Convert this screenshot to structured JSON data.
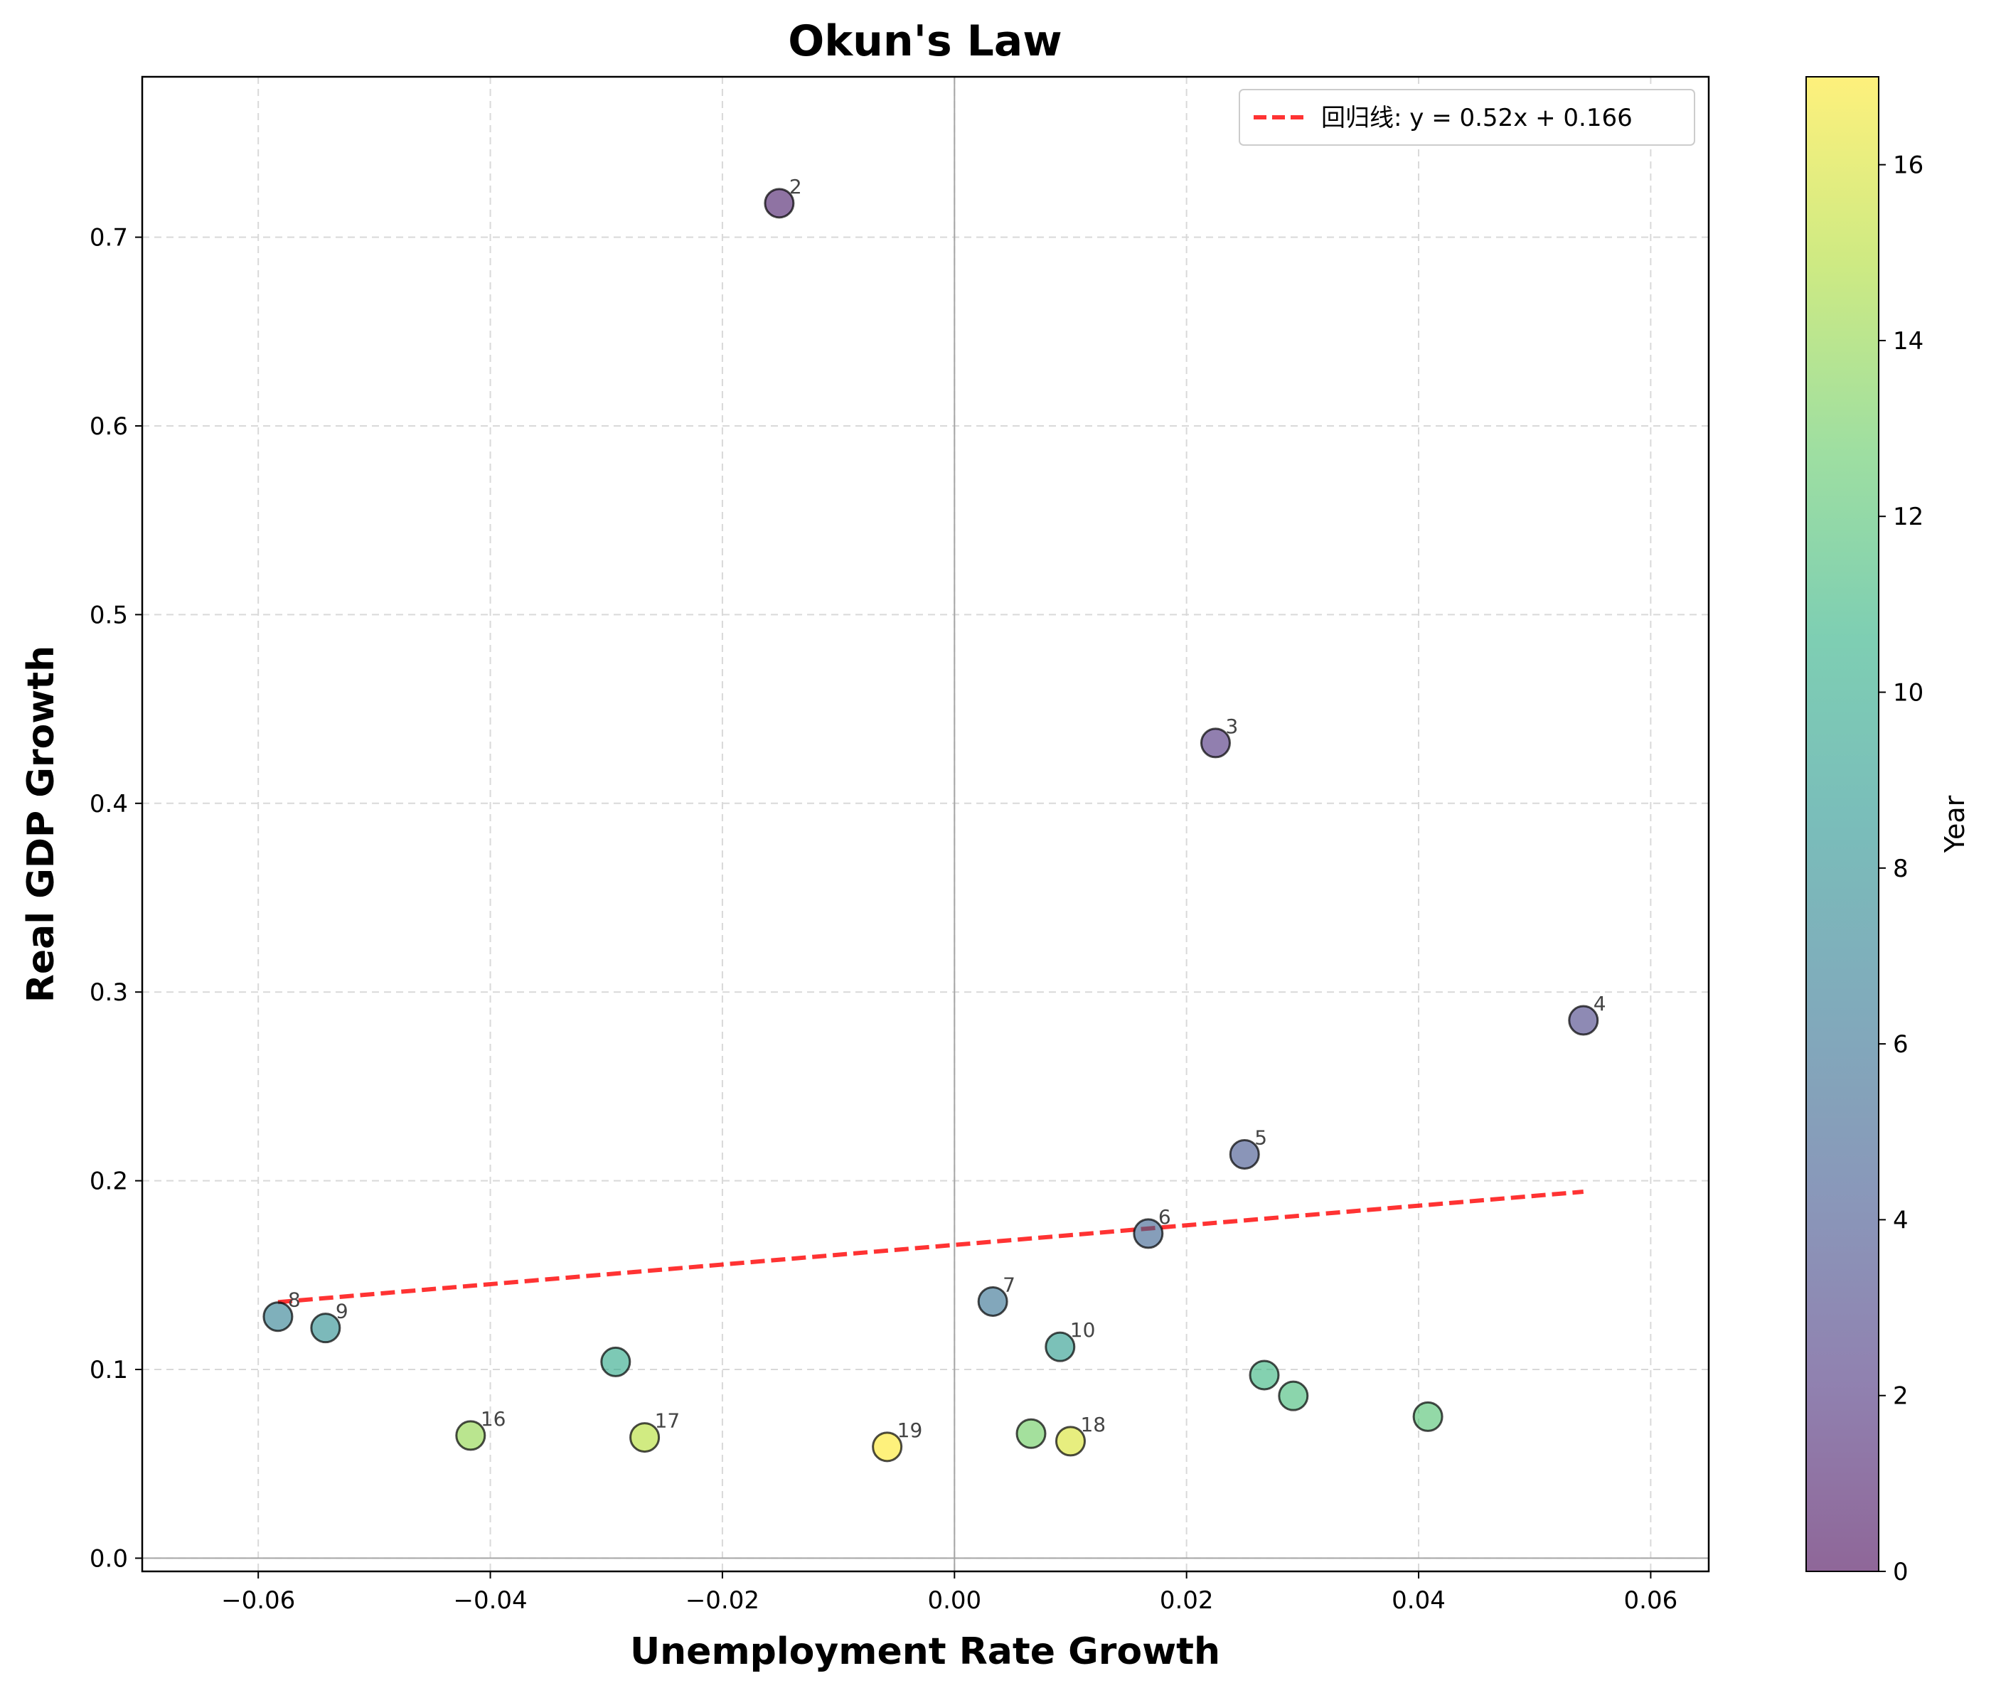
{
  "chart_data": {
    "type": "scatter",
    "title": "Okun's Law",
    "xlabel": "Unemployment Rate Growth",
    "ylabel": "Real GDP Growth",
    "xlim": [
      -0.07,
      0.065
    ],
    "ylim": [
      -0.007,
      0.785
    ],
    "xticks": [
      -0.06,
      -0.04,
      -0.02,
      0.0,
      0.02,
      0.04,
      0.06
    ],
    "xtick_labels": [
      "−0.06",
      "−0.04",
      "−0.02",
      "0.00",
      "0.02",
      "0.04",
      "0.06"
    ],
    "yticks": [
      0.0,
      0.1,
      0.2,
      0.3,
      0.4,
      0.5,
      0.6,
      0.7
    ],
    "ytick_labels": [
      "0.0",
      "0.1",
      "0.2",
      "0.3",
      "0.4",
      "0.5",
      "0.6",
      "0.7"
    ],
    "grid": true,
    "colormap": "viridis",
    "colorbar": {
      "label": "Year",
      "range": [
        0,
        17
      ],
      "ticks": [
        0,
        2,
        4,
        6,
        8,
        10,
        12,
        14,
        16
      ],
      "tick_labels": [
        "0",
        "2",
        "4",
        "6",
        "8",
        "10",
        "12",
        "14",
        "16"
      ]
    },
    "points": [
      {
        "label": "2",
        "x": -0.0151,
        "y": 0.718,
        "year": 1
      },
      {
        "label": "3",
        "x": 0.0225,
        "y": 0.432,
        "year": 2
      },
      {
        "label": "4",
        "x": 0.0542,
        "y": 0.285,
        "year": 3
      },
      {
        "label": "5",
        "x": 0.025,
        "y": 0.214,
        "year": 4
      },
      {
        "label": "6",
        "x": 0.0167,
        "y": 0.172,
        "year": 5
      },
      {
        "label": "7",
        "x": 0.0033,
        "y": 0.136,
        "year": 6
      },
      {
        "label": "8",
        "x": -0.0583,
        "y": 0.128,
        "year": 7
      },
      {
        "label": "9",
        "x": -0.0542,
        "y": 0.122,
        "year": 8
      },
      {
        "label": "10",
        "x": 0.0091,
        "y": 0.112,
        "year": 9
      },
      {
        "label": "",
        "x": -0.0292,
        "y": 0.104,
        "year": 10
      },
      {
        "label": "",
        "x": 0.0267,
        "y": 0.097,
        "year": 11
      },
      {
        "label": "",
        "x": 0.0292,
        "y": 0.086,
        "year": 11.5
      },
      {
        "label": "",
        "x": 0.0408,
        "y": 0.075,
        "year": 12
      },
      {
        "label": "",
        "x": 0.0066,
        "y": 0.066,
        "year": 13
      },
      {
        "label": "16",
        "x": -0.0417,
        "y": 0.065,
        "year": 14
      },
      {
        "label": "17",
        "x": -0.0267,
        "y": 0.064,
        "year": 15
      },
      {
        "label": "18",
        "x": 0.01,
        "y": 0.062,
        "year": 16
      },
      {
        "label": "19",
        "x": -0.0058,
        "y": 0.059,
        "year": 17
      }
    ],
    "fit_line": {
      "x_start": -0.0583,
      "x_end": 0.0542,
      "slope": 0.52,
      "intercept": 0.166,
      "color": "#ff0000",
      "style": "dashed"
    },
    "legend": {
      "position": "top-right",
      "entries": [
        "回归线: y = 0.52x + 0.166"
      ]
    },
    "reference_lines": {
      "x": 0,
      "y": 0
    }
  }
}
